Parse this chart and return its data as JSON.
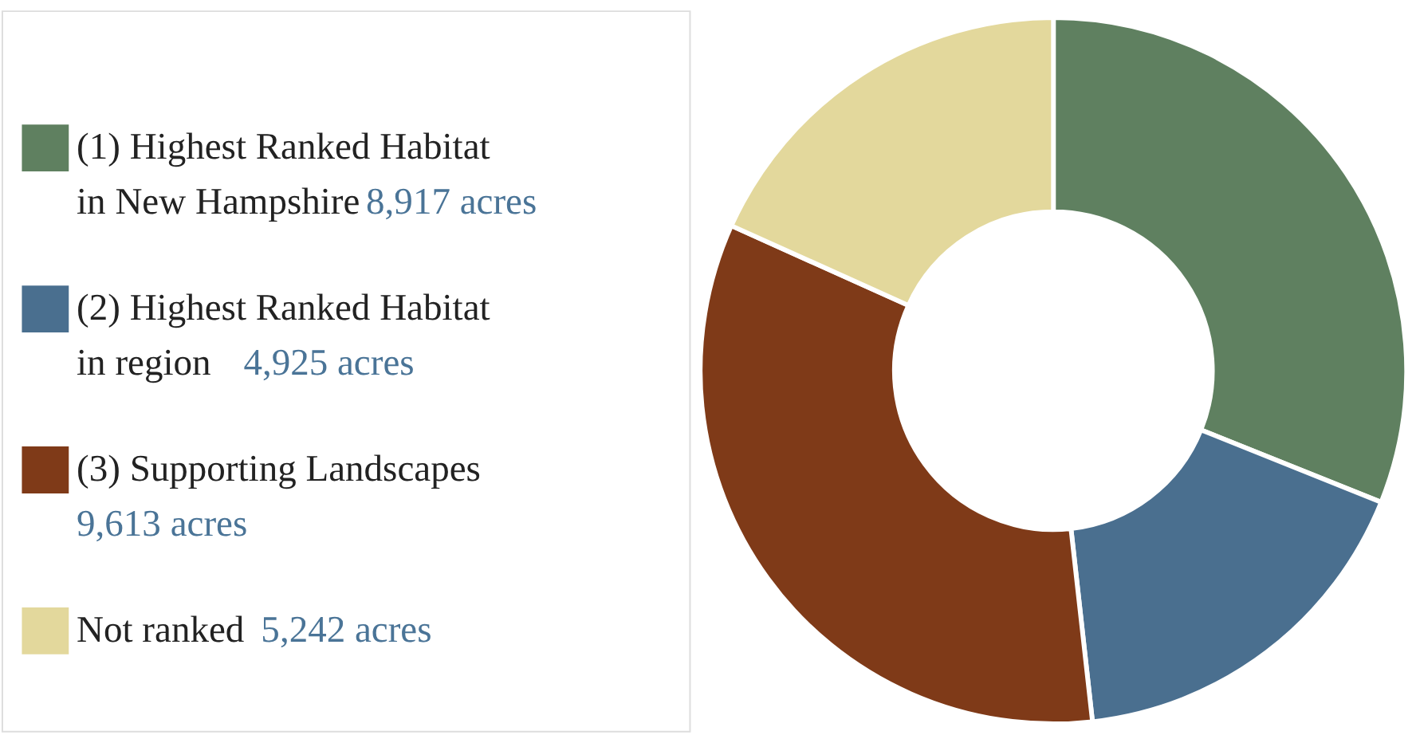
{
  "chart_data": {
    "type": "donut",
    "categories": [
      "(1) Highest Ranked Habitat in New Hampshire",
      "(2) Highest Ranked Habitat in region",
      "(3) Supporting Landscapes",
      "Not ranked"
    ],
    "values": [
      8917,
      4925,
      9613,
      5242
    ],
    "value_labels": [
      "8,917 acres",
      "4,925 acres",
      "9,613 acres",
      "5,242 acres"
    ],
    "colors": [
      "#5f8060",
      "#4a6f8f",
      "#7f3a18",
      "#e3d89c"
    ],
    "legend": "left"
  }
}
